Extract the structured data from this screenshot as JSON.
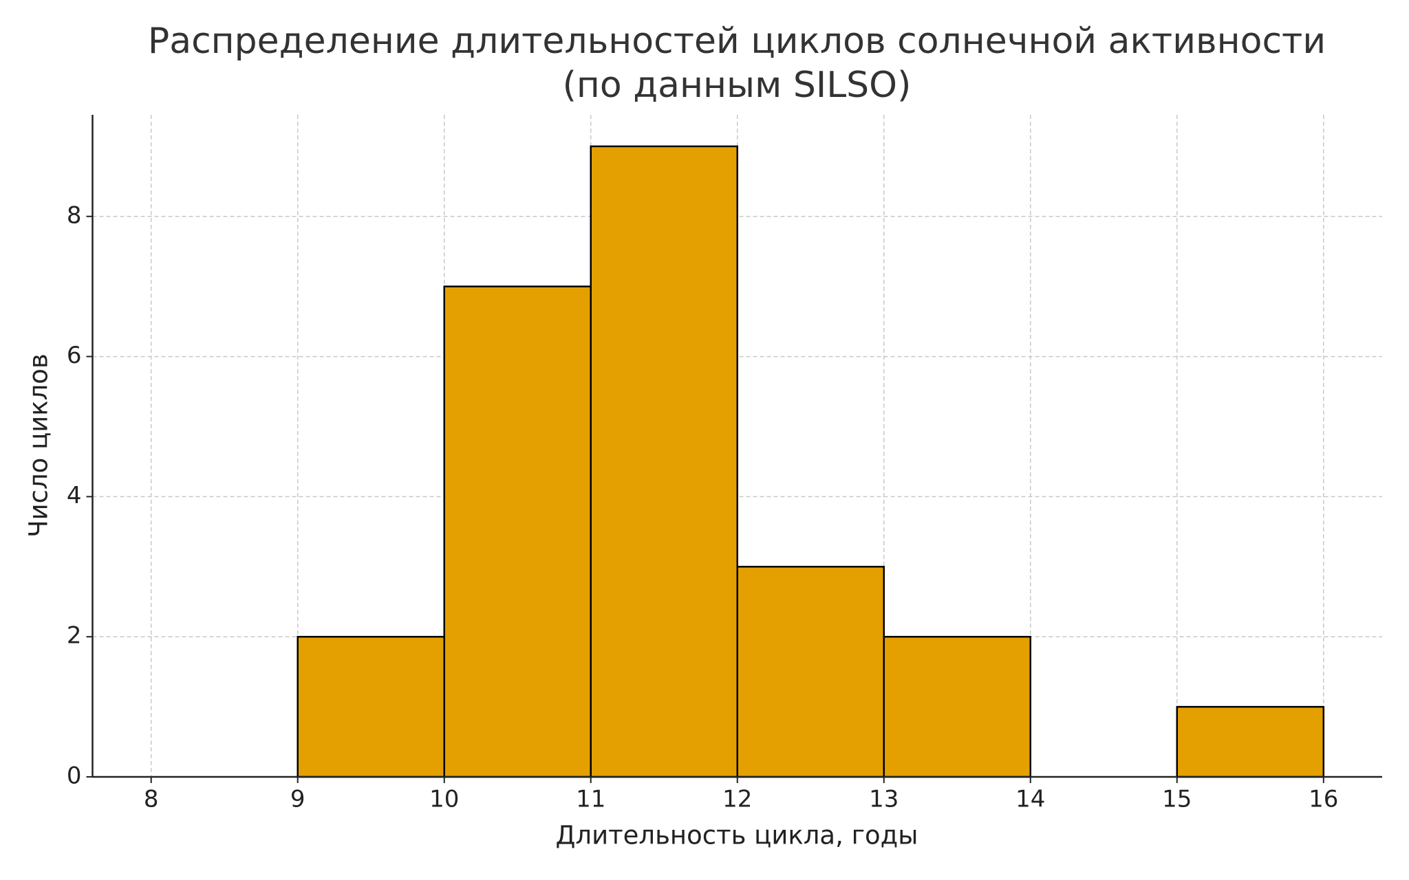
{
  "chart_data": {
    "type": "histogram",
    "title": "Распределение длительностей циклов солнечной активности\n(по данным SILSO)",
    "x_label": "Длительность цикла, годы",
    "y_label": "Число циклов",
    "bins": [
      8,
      9,
      10,
      11,
      12,
      13,
      14,
      15,
      16
    ],
    "values": [
      0,
      2,
      7,
      9,
      3,
      2,
      0,
      1
    ],
    "color": "#e3a000",
    "edge_color": "#000000",
    "xlim": [
      7.6,
      16.4
    ],
    "ylim": [
      0,
      9.45
    ],
    "xticks": [
      8,
      9,
      10,
      11,
      12,
      13,
      14,
      15,
      16
    ],
    "yticks": [
      0,
      2,
      4,
      6,
      8
    ],
    "grid": true
  }
}
